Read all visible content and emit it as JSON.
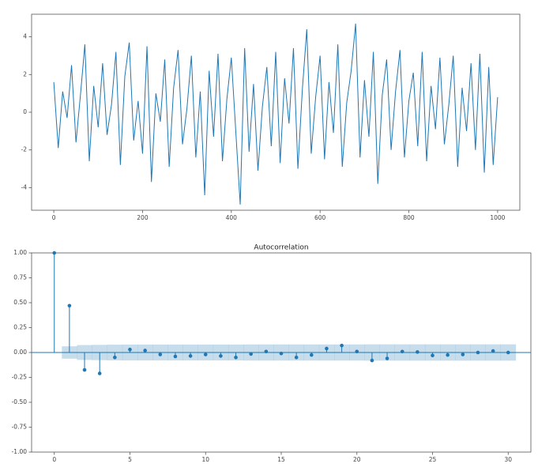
{
  "chart_data": [
    {
      "type": "line",
      "color": "#1f77b4",
      "x": [
        0,
        10,
        20,
        30,
        40,
        50,
        60,
        70,
        80,
        90,
        100,
        110,
        120,
        130,
        140,
        150,
        160,
        170,
        180,
        190,
        200,
        210,
        220,
        230,
        240,
        250,
        260,
        270,
        280,
        290,
        300,
        310,
        320,
        330,
        340,
        350,
        360,
        370,
        380,
        390,
        400,
        410,
        420,
        430,
        440,
        450,
        460,
        470,
        480,
        490,
        500,
        510,
        520,
        530,
        540,
        550,
        560,
        570,
        580,
        590,
        600,
        610,
        620,
        630,
        640,
        650,
        660,
        670,
        680,
        690,
        700,
        710,
        720,
        730,
        740,
        750,
        760,
        770,
        780,
        790,
        800,
        810,
        820,
        830,
        840,
        850,
        860,
        870,
        880,
        890,
        900,
        910,
        920,
        930,
        940,
        950,
        960,
        970,
        980,
        990,
        1000
      ],
      "values": [
        1.6,
        -1.9,
        1.1,
        -0.3,
        2.5,
        -1.6,
        0.9,
        3.6,
        -2.6,
        1.4,
        -0.8,
        2.6,
        -1.2,
        0.4,
        3.2,
        -2.8,
        1.9,
        3.7,
        -1.5,
        0.6,
        -2.2,
        3.5,
        -3.7,
        1.0,
        -0.5,
        2.8,
        -2.9,
        1.3,
        3.3,
        -1.7,
        0.2,
        3.0,
        -2.4,
        1.1,
        -4.4,
        2.2,
        -1.3,
        3.1,
        -2.6,
        0.7,
        2.9,
        -1.0,
        -4.9,
        3.4,
        -2.1,
        1.5,
        -3.1,
        0.3,
        2.4,
        -1.8,
        3.2,
        -2.7,
        1.8,
        -0.6,
        3.4,
        -3.0,
        1.2,
        4.4,
        -2.2,
        0.8,
        3.0,
        -2.5,
        1.6,
        -1.1,
        3.6,
        -2.9,
        0.5,
        2.2,
        4.7,
        -2.4,
        1.7,
        -1.3,
        3.2,
        -3.8,
        0.9,
        2.8,
        -2.0,
        1.1,
        3.3,
        -2.4,
        0.6,
        2.1,
        -1.8,
        3.2,
        -2.6,
        1.4,
        -0.9,
        2.9,
        -1.7,
        0.4,
        3.0,
        -2.9,
        1.3,
        -1.0,
        2.6,
        -2.0,
        3.1,
        -3.2,
        2.4,
        -2.8,
        0.8
      ],
      "xlim": [
        -50,
        1050
      ],
      "xticks": [
        0,
        200,
        400,
        600,
        800,
        1000
      ],
      "ylim": [
        -5.2,
        5.2
      ],
      "yticks": [
        -4,
        -2,
        0,
        2,
        4
      ]
    },
    {
      "type": "stem",
      "title": "Autocorrelation",
      "color": "#1f77b4",
      "x": [
        0,
        1,
        2,
        3,
        4,
        5,
        6,
        7,
        8,
        9,
        10,
        11,
        12,
        13,
        14,
        15,
        16,
        17,
        18,
        19,
        20,
        21,
        22,
        23,
        24,
        25,
        26,
        27,
        28,
        29,
        30
      ],
      "values": [
        1.0,
        0.47,
        -0.175,
        -0.21,
        -0.05,
        0.03,
        0.02,
        -0.02,
        -0.04,
        -0.035,
        -0.02,
        -0.035,
        -0.05,
        -0.015,
        0.01,
        -0.01,
        -0.05,
        -0.025,
        0.04,
        0.07,
        0.01,
        -0.08,
        -0.06,
        0.01,
        0.005,
        -0.03,
        -0.025,
        -0.02,
        0.0,
        0.015,
        0.0
      ],
      "band_x": [
        1,
        2,
        3,
        4,
        5,
        6,
        7,
        8,
        9,
        10,
        11,
        12,
        13,
        14,
        15,
        16,
        17,
        18,
        19,
        20,
        21,
        22,
        23,
        24,
        25,
        26,
        27,
        28,
        29,
        30
      ],
      "band_upper": [
        0.062,
        0.075,
        0.077,
        0.079,
        0.08,
        0.08,
        0.08,
        0.08,
        0.08,
        0.08,
        0.08,
        0.08,
        0.081,
        0.081,
        0.081,
        0.081,
        0.081,
        0.081,
        0.081,
        0.081,
        0.082,
        0.082,
        0.082,
        0.082,
        0.082,
        0.082,
        0.082,
        0.082,
        0.082,
        0.082
      ],
      "band_lower": [
        -0.062,
        -0.075,
        -0.077,
        -0.079,
        -0.08,
        -0.08,
        -0.08,
        -0.08,
        -0.08,
        -0.08,
        -0.08,
        -0.08,
        -0.081,
        -0.081,
        -0.081,
        -0.081,
        -0.081,
        -0.081,
        -0.081,
        -0.081,
        -0.082,
        -0.082,
        -0.082,
        -0.082,
        -0.082,
        -0.082,
        -0.082,
        -0.082,
        -0.082,
        -0.082
      ],
      "xlim": [
        -1.5,
        31.5
      ],
      "xticks": [
        0,
        5,
        10,
        15,
        20,
        25,
        30
      ],
      "ylim": [
        -1,
        1
      ],
      "yticks": [
        {
          "value": -1,
          "label": "-1.00"
        },
        {
          "value": -0.75,
          "label": "-0.75"
        },
        {
          "value": -0.5,
          "label": "-0.50"
        },
        {
          "value": -0.25,
          "label": "-0.25"
        },
        {
          "value": 0,
          "label": "0.00"
        },
        {
          "value": 0.25,
          "label": "0.25"
        },
        {
          "value": 0.5,
          "label": "0.50"
        },
        {
          "value": 0.75,
          "label": "0.75"
        },
        {
          "value": 1,
          "label": "1.00"
        }
      ]
    }
  ]
}
